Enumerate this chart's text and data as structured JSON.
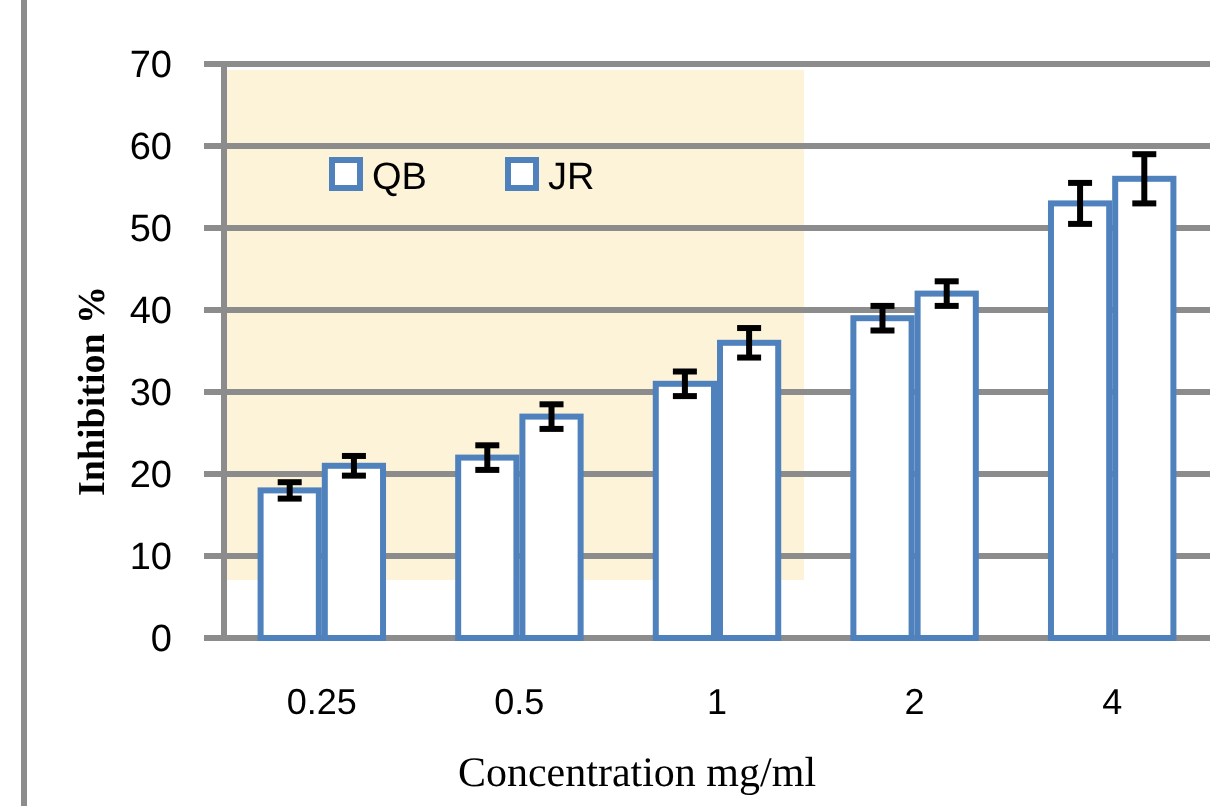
{
  "chart_data": {
    "type": "bar",
    "xlabel": "Concentration mg/ml",
    "ylabel": "Inhibition %",
    "categories": [
      "0.25",
      "0.5",
      "1",
      "2",
      "4"
    ],
    "series": [
      {
        "name": "QB",
        "color": "#4f81bd",
        "values": [
          18,
          22,
          31,
          39,
          53
        ],
        "errors": [
          1,
          1.5,
          1.5,
          1.5,
          2.5
        ]
      },
      {
        "name": "JR",
        "color": "#4f81bd",
        "values": [
          21,
          27,
          36,
          42,
          56
        ],
        "errors": [
          1.2,
          1.5,
          1.8,
          1.5,
          3
        ]
      }
    ],
    "ylim": [
      0,
      70
    ],
    "yticks": [
      0,
      10,
      20,
      30,
      40,
      50,
      60,
      70
    ],
    "grid": "y",
    "legend": "top left"
  }
}
